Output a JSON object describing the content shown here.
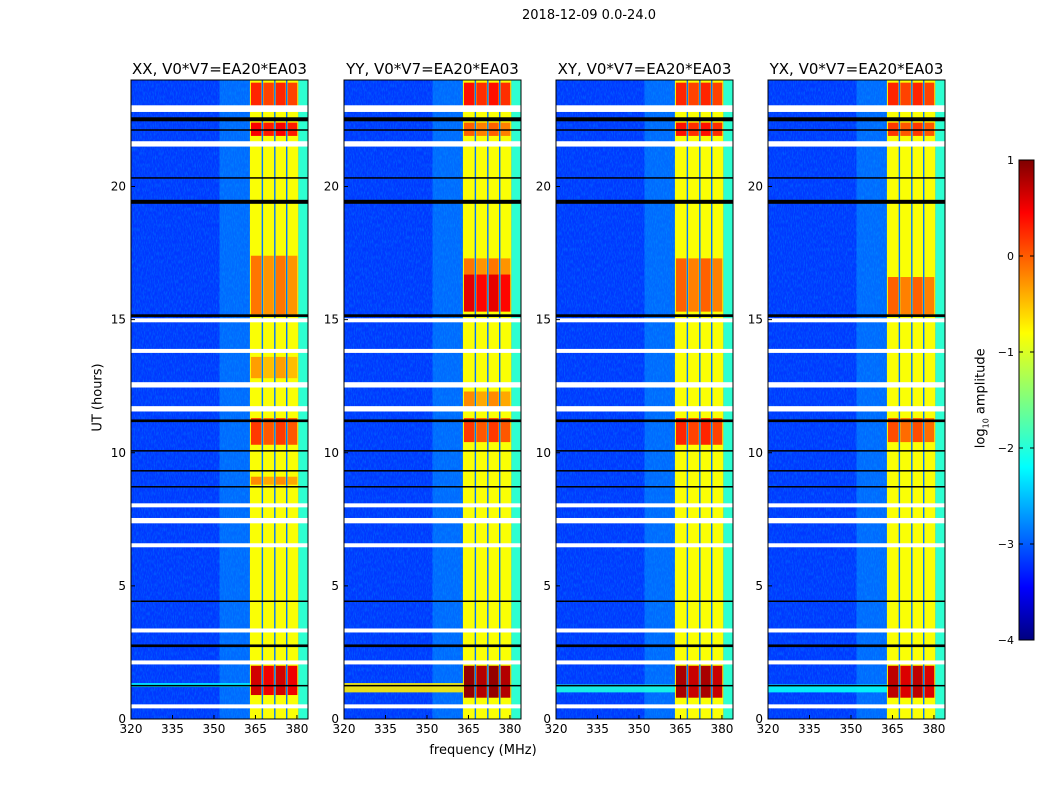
{
  "chart_data": {
    "type": "heatmap",
    "title": "2018-12-09 0.0-24.0",
    "xlabel": "frequency (MHz)",
    "ylabel": "UT (hours)",
    "xlim": [
      320,
      384
    ],
    "ylim": [
      0,
      24
    ],
    "xticks": [
      "320",
      "335",
      "350",
      "365",
      "380"
    ],
    "xtick_values": [
      320,
      335,
      350,
      365,
      380
    ],
    "yticks": [
      "0",
      "5",
      "10",
      "15",
      "20"
    ],
    "ytick_values": [
      0,
      5,
      10,
      15,
      20
    ],
    "colorbar": {
      "label_prefix": "log",
      "label_sub": "10",
      "label_suffix": " amplitude",
      "range": [
        -4,
        1
      ],
      "colormap": "jet",
      "ticks": [
        "1",
        "0",
        "−1",
        "−2",
        "−3",
        "−4"
      ],
      "tick_values": [
        1,
        0,
        -1,
        -2,
        -3,
        -4
      ]
    },
    "background_level": -3.1,
    "band_edges_MHz": [
      363,
      367.5,
      372,
      376.3,
      380.5
    ],
    "shoulder_MHz": [
      380.5,
      384
    ],
    "default_band_level": -0.9,
    "gaps_hours": [
      [
        22.8,
        23.05
      ],
      [
        21.5,
        21.7
      ],
      [
        13.75,
        13.9
      ],
      [
        14.9,
        15.05
      ],
      [
        12.45,
        12.65
      ],
      [
        11.55,
        11.75
      ],
      [
        7.95,
        8.1
      ],
      [
        7.35,
        7.55
      ],
      [
        6.45,
        6.6
      ],
      [
        3.25,
        3.4
      ],
      [
        2.05,
        2.2
      ],
      [
        0.4,
        0.55
      ]
    ],
    "flags_hours": [
      [
        22.45,
        22.6
      ],
      [
        22.1,
        22.15
      ],
      [
        19.35,
        19.5
      ],
      [
        20.3,
        20.35
      ],
      [
        15.1,
        15.2
      ],
      [
        11.15,
        11.25
      ],
      [
        10.05,
        10.1
      ],
      [
        9.3,
        9.35
      ],
      [
        8.7,
        8.75
      ],
      [
        4.4,
        4.45
      ],
      [
        2.7,
        2.8
      ],
      [
        1.25,
        1.28
      ]
    ],
    "panels": [
      {
        "title": "XX, V0*V7=EA20*EA03",
        "hot_segments": [
          [
            22.9,
            23.9,
            0.2
          ],
          [
            21.9,
            22.4,
            0.4
          ],
          [
            15.2,
            17.4,
            -0.2
          ],
          [
            10.3,
            11.3,
            0.1
          ],
          [
            8.8,
            9.1,
            -0.3
          ],
          [
            12.8,
            13.6,
            -0.4
          ],
          [
            0.9,
            2.0,
            0.6
          ]
        ],
        "streaks": [
          [
            1.2,
            1.35,
            -2.2
          ]
        ]
      },
      {
        "title": "YY, V0*V7=EA20*EA03",
        "hot_segments": [
          [
            22.9,
            23.9,
            0.3
          ],
          [
            21.9,
            22.4,
            -0.1
          ],
          [
            15.3,
            16.7,
            0.5
          ],
          [
            16.7,
            17.3,
            -0.2
          ],
          [
            10.4,
            11.3,
            0.1
          ],
          [
            11.7,
            12.3,
            -0.3
          ],
          [
            0.8,
            2.0,
            0.9
          ]
        ],
        "streaks": [
          [
            1.0,
            1.35,
            -0.8
          ]
        ]
      },
      {
        "title": "XY, V0*V7=EA20*EA03",
        "hot_segments": [
          [
            22.9,
            23.9,
            0.2
          ],
          [
            21.9,
            22.4,
            0.3
          ],
          [
            15.3,
            17.3,
            -0.1
          ],
          [
            10.3,
            11.3,
            0.2
          ],
          [
            0.8,
            2.0,
            0.8
          ]
        ],
        "streaks": [
          [
            1.0,
            1.3,
            -2.0
          ]
        ]
      },
      {
        "title": "YX, V0*V7=EA20*EA03",
        "hot_segments": [
          [
            22.9,
            23.9,
            0.2
          ],
          [
            21.9,
            22.4,
            0.1
          ],
          [
            15.2,
            16.6,
            -0.1
          ],
          [
            10.4,
            11.3,
            0.0
          ],
          [
            0.8,
            2.0,
            0.7
          ]
        ],
        "streaks": [
          [
            1.0,
            1.3,
            -2.1
          ]
        ]
      }
    ]
  }
}
